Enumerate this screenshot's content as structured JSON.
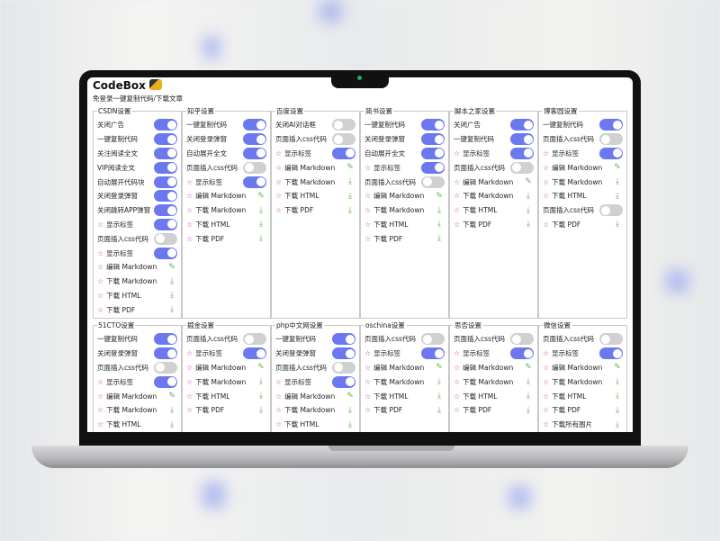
{
  "app": {
    "title": "CodeBox",
    "subtitle": "免登录一键复制代码/下载文章"
  },
  "colors": {
    "toggle_on": "#6b78ee",
    "toggle_off": "#d0d0d0",
    "star": "#d04aa0",
    "action_icon": "#5cb84a"
  },
  "sections": [
    {
      "title": "CSDN设置",
      "row": 1,
      "items": [
        {
          "label": "关闭广告",
          "type": "toggle",
          "on": true
        },
        {
          "label": "一键复制代码",
          "type": "toggle",
          "on": true
        },
        {
          "label": "关注阅读全文",
          "type": "toggle",
          "on": true
        },
        {
          "label": "VIP阅读全文",
          "type": "toggle",
          "on": true
        },
        {
          "label": "自动展开代码块",
          "type": "toggle",
          "on": true
        },
        {
          "label": "关闭登录弹窗",
          "type": "toggle",
          "on": true
        },
        {
          "label": "关闭跳转APP弹窗",
          "type": "toggle",
          "on": true
        },
        {
          "label": "显示标签",
          "type": "toggle",
          "on": true,
          "star": true
        },
        {
          "label": "页面插入css代码",
          "type": "toggle",
          "on": false
        },
        {
          "label": "显示标签",
          "type": "toggle",
          "on": true,
          "star": true
        },
        {
          "label": "编辑 Markdown",
          "type": "action",
          "icon": "edit-icon",
          "star": true
        },
        {
          "label": "下载 Markdown",
          "type": "action",
          "icon": "download-icon",
          "star": true
        },
        {
          "label": "下载 HTML",
          "type": "action",
          "icon": "download-icon",
          "star": true
        },
        {
          "label": "下载 PDF",
          "type": "action",
          "icon": "download-icon",
          "star": true
        }
      ]
    },
    {
      "title": "知乎设置",
      "row": 1,
      "items": [
        {
          "label": "一键复制代码",
          "type": "toggle",
          "on": true
        },
        {
          "label": "关闭登录弹窗",
          "type": "toggle",
          "on": true
        },
        {
          "label": "自动展开全文",
          "type": "toggle",
          "on": true
        },
        {
          "label": "页面插入css代码",
          "type": "toggle",
          "on": false
        },
        {
          "label": "显示标签",
          "type": "toggle",
          "on": true,
          "star": true
        },
        {
          "label": "编辑 Markdown",
          "type": "action",
          "icon": "edit-icon",
          "star": true
        },
        {
          "label": "下载 Markdown",
          "type": "action",
          "icon": "download-icon",
          "star": true
        },
        {
          "label": "下载 HTML",
          "type": "action",
          "icon": "download-icon",
          "star": true
        },
        {
          "label": "下载 PDF",
          "type": "action",
          "icon": "download-icon",
          "star": true
        }
      ]
    },
    {
      "title": "百度设置",
      "row": 1,
      "items": [
        {
          "label": "关闭AI对话框",
          "type": "toggle",
          "on": false
        },
        {
          "label": "页面插入css代码",
          "type": "toggle",
          "on": false
        },
        {
          "label": "显示标签",
          "type": "toggle",
          "on": true,
          "star": true
        },
        {
          "label": "编辑 Markdown",
          "type": "action",
          "icon": "edit-icon",
          "star": true
        },
        {
          "label": "下载 Markdown",
          "type": "action",
          "icon": "download-icon",
          "star": true
        },
        {
          "label": "下载 HTML",
          "type": "action",
          "icon": "download-icon",
          "star": true
        },
        {
          "label": "下载 PDF",
          "type": "action",
          "icon": "download-icon",
          "star": true
        }
      ]
    },
    {
      "title": "简书设置",
      "row": 1,
      "items": [
        {
          "label": "一键复制代码",
          "type": "toggle",
          "on": true
        },
        {
          "label": "关闭登录弹窗",
          "type": "toggle",
          "on": true
        },
        {
          "label": "自动展开全文",
          "type": "toggle",
          "on": true
        },
        {
          "label": "显示标签",
          "type": "toggle",
          "on": true,
          "star": true
        },
        {
          "label": "页面插入css代码",
          "type": "toggle",
          "on": false
        },
        {
          "label": "编辑 Markdown",
          "type": "action",
          "icon": "edit-icon",
          "star": true
        },
        {
          "label": "下载 Markdown",
          "type": "action",
          "icon": "download-icon",
          "star": true
        },
        {
          "label": "下载 HTML",
          "type": "action",
          "icon": "download-icon",
          "star": true
        },
        {
          "label": "下载 PDF",
          "type": "action",
          "icon": "download-icon",
          "star": true
        }
      ]
    },
    {
      "title": "脚本之家设置",
      "row": 1,
      "items": [
        {
          "label": "关闭广告",
          "type": "toggle",
          "on": true
        },
        {
          "label": "一键复制代码",
          "type": "toggle",
          "on": true
        },
        {
          "label": "显示标签",
          "type": "toggle",
          "on": true,
          "star": true
        },
        {
          "label": "页面插入css代码",
          "type": "toggle",
          "on": false
        },
        {
          "label": "编辑 Markdown",
          "type": "action",
          "icon": "edit-icon",
          "star": true
        },
        {
          "label": "下载 Markdown",
          "type": "action",
          "icon": "download-icon",
          "star": true
        },
        {
          "label": "下载 HTML",
          "type": "action",
          "icon": "download-icon",
          "star": true
        },
        {
          "label": "下载 PDF",
          "type": "action",
          "icon": "download-icon",
          "star": true
        }
      ]
    },
    {
      "title": "博客园设置",
      "row": 1,
      "items": [
        {
          "label": "一键复制代码",
          "type": "toggle",
          "on": true
        },
        {
          "label": "页面插入css代码",
          "type": "toggle",
          "on": false
        },
        {
          "label": "显示标签",
          "type": "toggle",
          "on": true,
          "star": true
        },
        {
          "label": "编辑 Markdown",
          "type": "action",
          "icon": "edit-icon",
          "star": true
        },
        {
          "label": "下载 Markdown",
          "type": "action",
          "icon": "download-icon",
          "star": true
        },
        {
          "label": "下载 HTML",
          "type": "action",
          "icon": "download-icon",
          "star": true
        },
        {
          "label": "页面插入css代码",
          "type": "toggle",
          "on": false
        },
        {
          "label": "下载 PDF",
          "type": "action",
          "icon": "download-icon",
          "star": true
        }
      ]
    },
    {
      "title": "51CTO设置",
      "row": 2,
      "items": [
        {
          "label": "一键复制代码",
          "type": "toggle",
          "on": true
        },
        {
          "label": "关闭登录弹窗",
          "type": "toggle",
          "on": true
        },
        {
          "label": "页面插入css代码",
          "type": "toggle",
          "on": false
        },
        {
          "label": "显示标签",
          "type": "toggle",
          "on": true,
          "star": true
        },
        {
          "label": "编辑 Markdown",
          "type": "action",
          "icon": "edit-icon",
          "star": true
        },
        {
          "label": "下载 Markdown",
          "type": "action",
          "icon": "download-icon",
          "star": true
        },
        {
          "label": "下载 HTML",
          "type": "action",
          "icon": "download-icon",
          "star": true
        }
      ]
    },
    {
      "title": "掘金设置",
      "row": 2,
      "items": [
        {
          "label": "页面插入css代码",
          "type": "toggle",
          "on": false
        },
        {
          "label": "显示标签",
          "type": "toggle",
          "on": true,
          "star": true
        },
        {
          "label": "编辑 Markdown",
          "type": "action",
          "icon": "edit-icon",
          "star": true
        },
        {
          "label": "下载 Markdown",
          "type": "action",
          "icon": "download-icon",
          "star": true
        },
        {
          "label": "下载 HTML",
          "type": "action",
          "icon": "download-icon",
          "star": true
        },
        {
          "label": "下载 PDF",
          "type": "action",
          "icon": "download-icon",
          "star": true
        }
      ]
    },
    {
      "title": "php中文网设置",
      "row": 2,
      "items": [
        {
          "label": "一键复制代码",
          "type": "toggle",
          "on": true
        },
        {
          "label": "关闭登录弹窗",
          "type": "toggle",
          "on": true
        },
        {
          "label": "页面插入css代码",
          "type": "toggle",
          "on": false
        },
        {
          "label": "显示标签",
          "type": "toggle",
          "on": true,
          "star": true
        },
        {
          "label": "编辑 Markdown",
          "type": "action",
          "icon": "edit-icon",
          "star": true
        },
        {
          "label": "下载 Markdown",
          "type": "action",
          "icon": "download-icon",
          "star": true
        },
        {
          "label": "下载 HTML",
          "type": "action",
          "icon": "download-icon",
          "star": true
        }
      ]
    },
    {
      "title": "oschina设置",
      "row": 2,
      "items": [
        {
          "label": "页面插入css代码",
          "type": "toggle",
          "on": false
        },
        {
          "label": "显示标签",
          "type": "toggle",
          "on": true,
          "star": true
        },
        {
          "label": "编辑 Markdown",
          "type": "action",
          "icon": "edit-icon",
          "star": true
        },
        {
          "label": "下载 Markdown",
          "type": "action",
          "icon": "download-icon",
          "star": true
        },
        {
          "label": "下载 HTML",
          "type": "action",
          "icon": "download-icon",
          "star": true
        },
        {
          "label": "下载 PDF",
          "type": "action",
          "icon": "download-icon",
          "star": true
        }
      ]
    },
    {
      "title": "思否设置",
      "row": 2,
      "items": [
        {
          "label": "页面插入css代码",
          "type": "toggle",
          "on": false
        },
        {
          "label": "显示标签",
          "type": "toggle",
          "on": true,
          "star": true
        },
        {
          "label": "编辑 Markdown",
          "type": "action",
          "icon": "edit-icon",
          "star": true
        },
        {
          "label": "下载 Markdown",
          "type": "action",
          "icon": "download-icon",
          "star": true
        },
        {
          "label": "下载 HTML",
          "type": "action",
          "icon": "download-icon",
          "star": true
        },
        {
          "label": "下载 PDF",
          "type": "action",
          "icon": "download-icon",
          "star": true
        }
      ]
    },
    {
      "title": "微信设置",
      "row": 2,
      "items": [
        {
          "label": "页面插入css代码",
          "type": "toggle",
          "on": false
        },
        {
          "label": "显示标签",
          "type": "toggle",
          "on": true,
          "star": true
        },
        {
          "label": "编辑 Markdown",
          "type": "action",
          "icon": "edit-icon",
          "star": true
        },
        {
          "label": "下载 Markdown",
          "type": "action",
          "icon": "download-icon",
          "star": true
        },
        {
          "label": "下载 HTML",
          "type": "action",
          "icon": "download-icon",
          "star": true
        },
        {
          "label": "下载 PDF",
          "type": "action",
          "icon": "download-icon",
          "star": true
        },
        {
          "label": "下载所有图片",
          "type": "action",
          "icon": "download-icon",
          "star": true
        }
      ]
    }
  ]
}
